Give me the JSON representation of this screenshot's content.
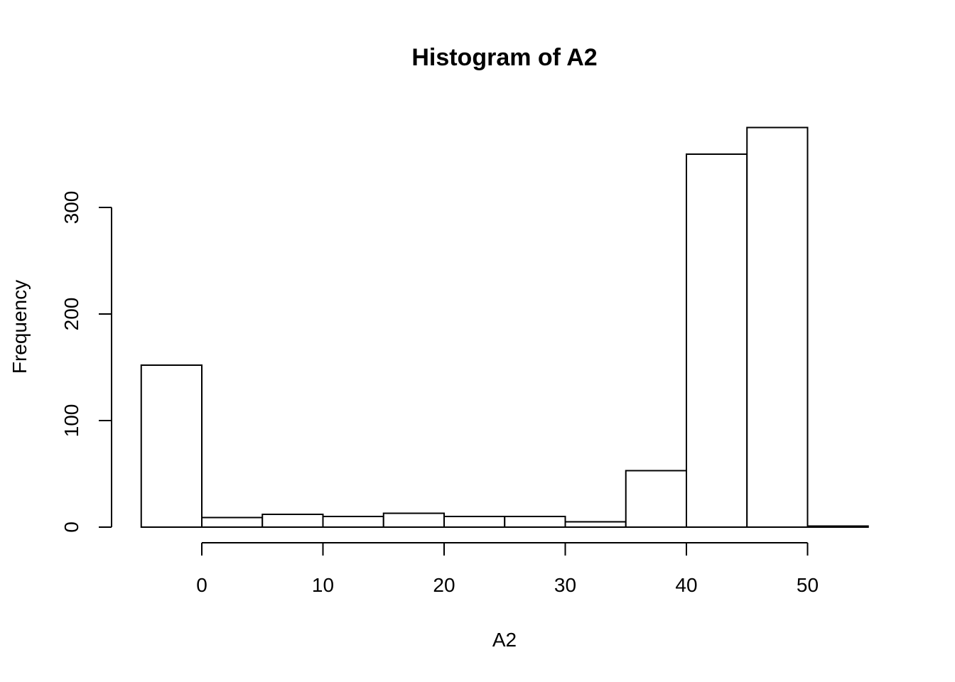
{
  "chart_data": {
    "type": "bar",
    "title": "Histogram of A2",
    "xlabel": "A2",
    "ylabel": "Frequency",
    "bins": [
      {
        "x0": -5,
        "x1": 0,
        "value": 152
      },
      {
        "x0": 0,
        "x1": 5,
        "value": 9
      },
      {
        "x0": 5,
        "x1": 10,
        "value": 12
      },
      {
        "x0": 10,
        "x1": 15,
        "value": 10
      },
      {
        "x0": 15,
        "x1": 20,
        "value": 13
      },
      {
        "x0": 20,
        "x1": 25,
        "value": 10
      },
      {
        "x0": 25,
        "x1": 30,
        "value": 10
      },
      {
        "x0": 30,
        "x1": 35,
        "value": 5
      },
      {
        "x0": 35,
        "x1": 40,
        "value": 53
      },
      {
        "x0": 40,
        "x1": 45,
        "value": 350
      },
      {
        "x0": 45,
        "x1": 50,
        "value": 375
      },
      {
        "x0": 50,
        "x1": 55,
        "value": 1
      }
    ],
    "x_ticks": [
      0,
      10,
      20,
      30,
      40,
      50
    ],
    "y_ticks": [
      0,
      100,
      200,
      300
    ],
    "xlim": [
      -5,
      55
    ],
    "ylim": [
      0,
      375
    ],
    "grid": false,
    "legend": "none"
  }
}
